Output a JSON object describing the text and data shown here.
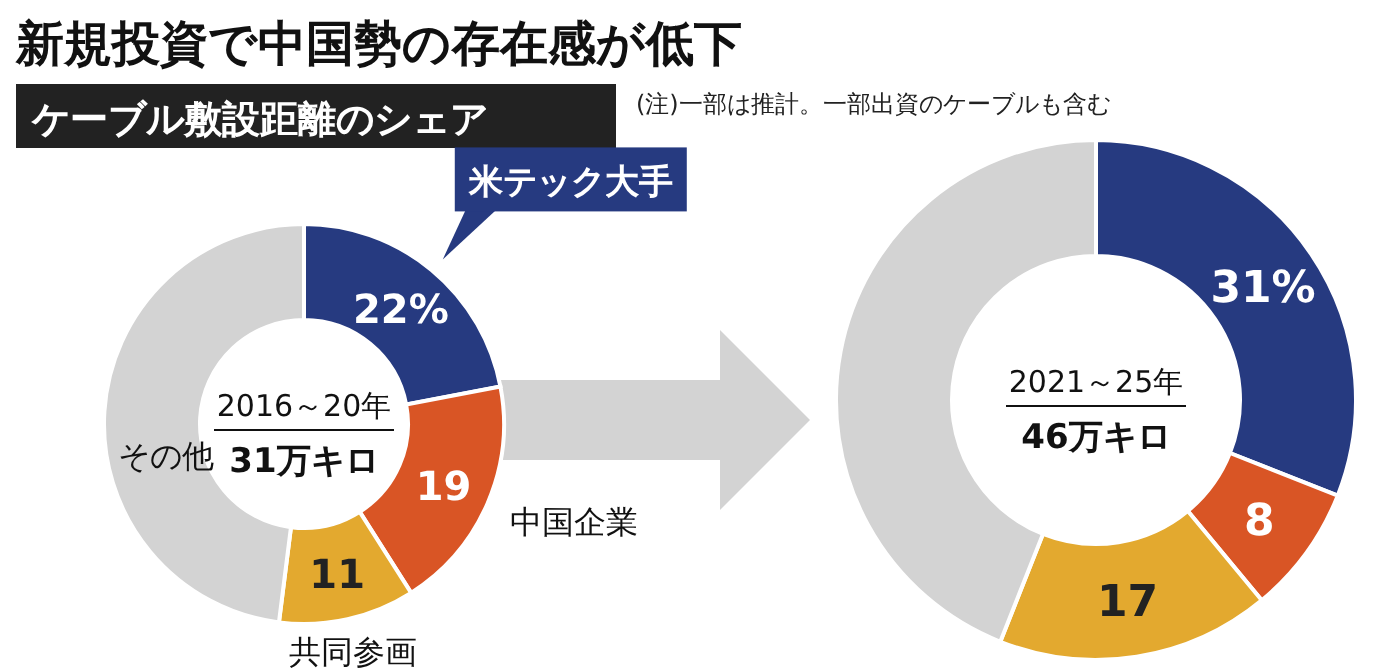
{
  "chart_data": [
    {
      "type": "donut",
      "title": "新規投資で中国勢の存在感が低下",
      "subtitle": "ケーブル敷設距離のシェア",
      "categories": [
        "米テック大手",
        "中国企業",
        "共同参画",
        "その他"
      ],
      "values": [
        22,
        19,
        11,
        48
      ],
      "colors": [
        "#263a80",
        "#d95525",
        "#e3a92f",
        "#d3d3d3"
      ],
      "value_labels": [
        "22%",
        "19",
        "11",
        null
      ],
      "annotations": [
        "2016～20年",
        "31万キロ"
      ]
    },
    {
      "type": "donut",
      "categories": [
        null,
        null,
        null,
        null
      ],
      "values": [
        31,
        8,
        17,
        44
      ],
      "colors": [
        "#263a80",
        "#d95525",
        "#e3a92f",
        "#d3d3d3"
      ],
      "value_labels": [
        "31%",
        "8",
        "17",
        null
      ],
      "annotations": [
        "(注)一部は推計。一部出資のケーブルも含む",
        "2021～25年",
        "46万キロ"
      ]
    }
  ]
}
